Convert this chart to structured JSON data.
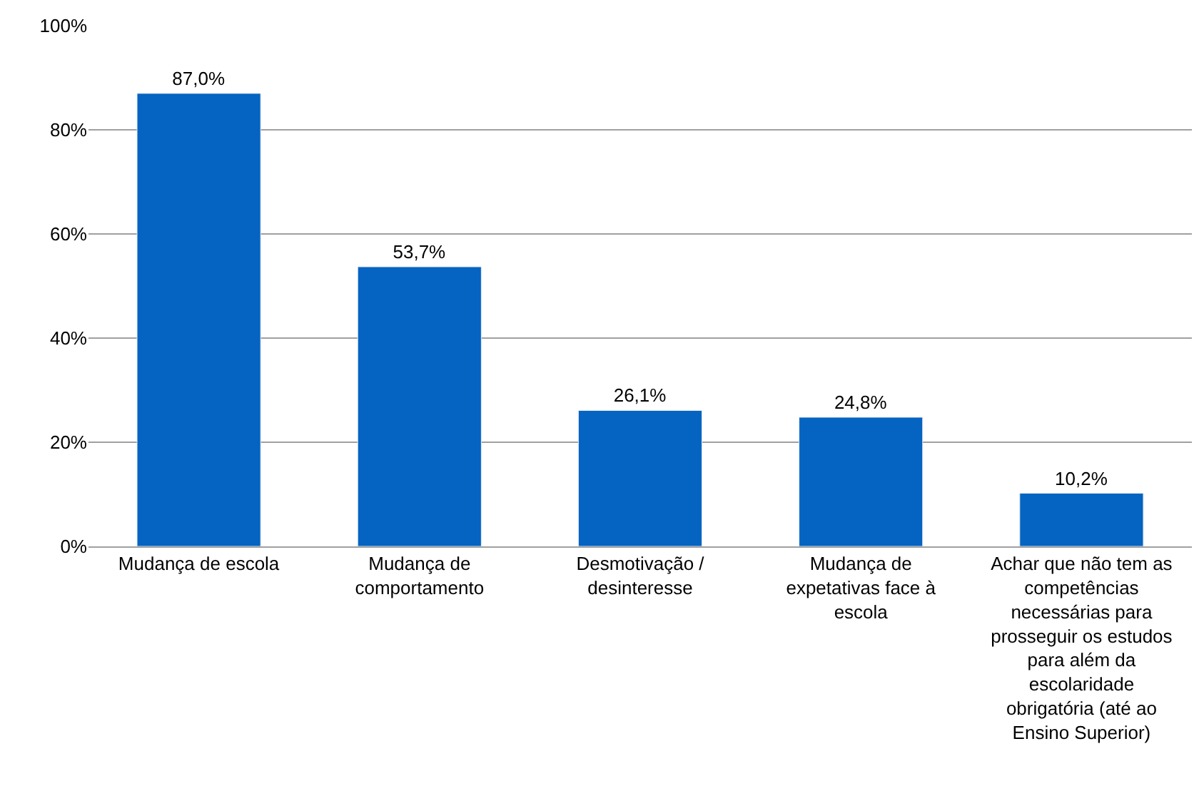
{
  "chart_data": {
    "type": "bar",
    "categories": [
      "Mudança de escola",
      "Mudança de comportamento",
      "Desmotivação / desinteresse",
      "Mudança de expetativas face à escola",
      "Achar que não tem as competências necessárias para prosseguir os estudos para além da escolaridade obrigatória (até ao Ensino Superior)"
    ],
    "values": [
      87.0,
      53.7,
      26.1,
      24.8,
      10.2
    ],
    "value_labels": [
      "87,0%",
      "53,7%",
      "26,1%",
      "24,8%",
      "10,2%"
    ],
    "color": "#0563c1",
    "ylim": [
      0,
      100
    ],
    "yticks": [
      {
        "value": 0,
        "label": "0%"
      },
      {
        "value": 20,
        "label": "20%"
      },
      {
        "value": 40,
        "label": "40%"
      },
      {
        "value": 60,
        "label": "60%"
      },
      {
        "value": 80,
        "label": "80%"
      },
      {
        "value": 100,
        "label": "100%"
      }
    ],
    "grid": "y",
    "legend": false
  }
}
